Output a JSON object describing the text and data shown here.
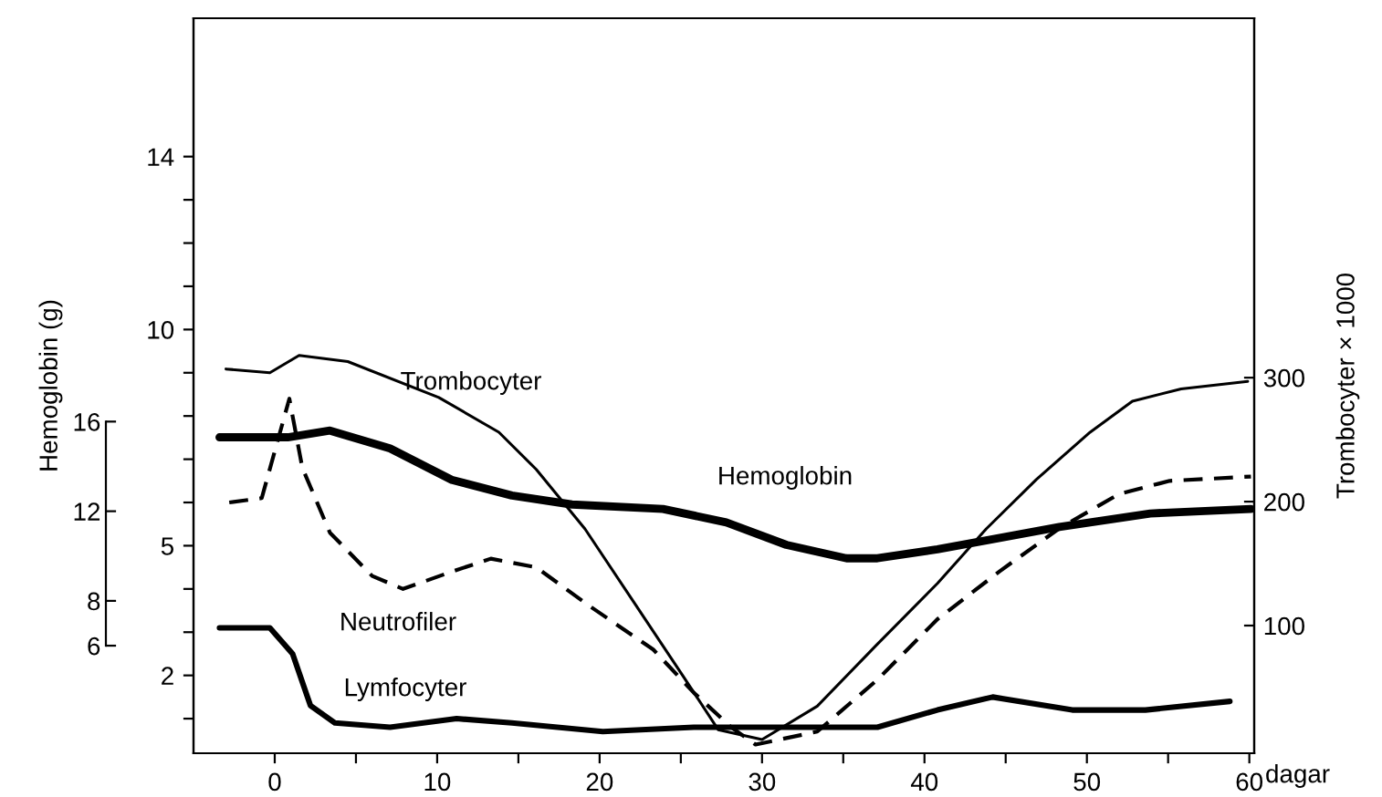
{
  "chart_data": {
    "type": "line",
    "xlabel": "dagar",
    "y2label": "Trombocyter × 1000",
    "y3label": "Hemoglobin (g)",
    "xlim": [
      -5,
      60.3
    ],
    "xticks": [
      0,
      {
        "value": 5,
        "label": null
      },
      10,
      {
        "value": 15,
        "label": null
      },
      20,
      {
        "value": 25,
        "label": null
      },
      30,
      {
        "value": 35,
        "label": null
      },
      40,
      {
        "value": 45,
        "label": null
      },
      50,
      {
        "value": 55,
        "label": null
      },
      60
    ],
    "ylim": [
      0.2,
      17.2
    ],
    "yticks": [
      {
        "value": 1,
        "label": null
      },
      2,
      {
        "value": 3,
        "label": null
      },
      {
        "value": 4,
        "label": null
      },
      5,
      {
        "value": 6,
        "label": null
      },
      {
        "value": 7,
        "label": null
      },
      {
        "value": 8,
        "label": null
      },
      {
        "value": 9,
        "label": null
      },
      10,
      {
        "value": 11,
        "label": null
      },
      {
        "value": 12,
        "label": null
      },
      {
        "value": 13,
        "label": null
      },
      14
    ],
    "y2lim": [
      -3,
      590
    ],
    "y2ticks": [
      100,
      200,
      300
    ],
    "y3lim": [
      1.2,
      34
    ],
    "y3ticks": [
      6,
      8,
      12,
      16
    ],
    "grid": false,
    "legend": false,
    "marker": "none",
    "series": [
      {
        "name": "Trombocyter",
        "color": "#000000",
        "axis": "y2",
        "line_style": "solid",
        "x": [
          -3.0,
          -0.3,
          1.5,
          4.5,
          10.1,
          13.8,
          16.1,
          19.1,
          22.1,
          25.1,
          27.3,
          30.0,
          33.4,
          37.1,
          40.8,
          43.8,
          46.9,
          50.2,
          52.8,
          55.8,
          59.9
        ],
        "values": [
          307,
          304,
          318,
          313,
          284,
          256,
          226,
          178,
          119,
          60,
          16,
          8,
          35,
          85,
          134,
          178,
          218,
          256,
          281,
          291,
          297
        ]
      },
      {
        "name": "Hemoglobin",
        "color": "#000000",
        "axis": "y3",
        "line_style": "solid",
        "x": [
          -3.4,
          0.8,
          3.4,
          7.1,
          10.9,
          14.6,
          18.3,
          23.9,
          27.8,
          31.5,
          35.2,
          37.1,
          40.8,
          43.8,
          48.3,
          53.9,
          60.1
        ],
        "values": [
          15.3,
          15.3,
          15.6,
          14.8,
          13.4,
          12.7,
          12.3,
          12.1,
          11.5,
          10.5,
          9.9,
          9.9,
          10.3,
          10.7,
          11.3,
          11.9,
          12.1
        ]
      },
      {
        "name": "Neutrofiler",
        "color": "#000000",
        "axis": "y",
        "line_style": "dashed",
        "x": [
          -2.8,
          -0.8,
          0.9,
          1.7,
          3.4,
          6.0,
          7.9,
          10.9,
          13.3,
          16.1,
          19.4,
          23.3,
          25.8,
          28.1,
          29.6,
          33.4,
          37.1,
          40.8,
          44.6,
          48.3,
          52.0,
          55.1,
          60.1
        ],
        "values": [
          6.0,
          6.1,
          8.4,
          6.8,
          5.3,
          4.3,
          4.0,
          4.4,
          4.7,
          4.5,
          3.6,
          2.6,
          1.6,
          0.8,
          0.4,
          0.7,
          1.9,
          3.3,
          4.4,
          5.4,
          6.2,
          6.5,
          6.6
        ]
      },
      {
        "name": "Lymfocyter",
        "color": "#000000",
        "axis": "y",
        "line_style": "solid",
        "x": [
          -3.4,
          -0.3,
          1.1,
          2.2,
          3.7,
          7.1,
          11.2,
          14.6,
          20.2,
          25.8,
          29.6,
          37.1,
          40.8,
          44.2,
          49.1,
          53.6,
          58.8
        ],
        "values": [
          3.1,
          3.1,
          2.5,
          1.3,
          0.9,
          0.8,
          1.0,
          0.9,
          0.7,
          0.8,
          0.8,
          0.8,
          1.2,
          1.5,
          1.2,
          1.2,
          1.4
        ]
      }
    ]
  }
}
